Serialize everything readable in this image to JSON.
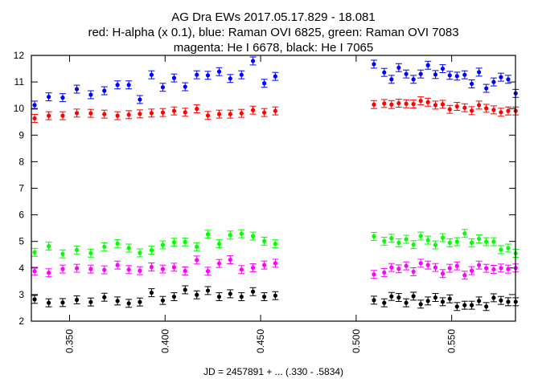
{
  "chart_data": {
    "type": "scatter",
    "title_lines": [
      "AG Dra EWs 2017.05.17.829 - 18.081",
      "red: H-alpha (x 0.1), blue: Raman OVI 6825, green: Raman OVI 7083",
      "magenta: He I 6678, black: He I 7065"
    ],
    "xlabel": "JD = 2457891 + ... (.330 - .5834)",
    "ylabel": "",
    "xlim": [
      0.33,
      0.5834
    ],
    "ylim": [
      2,
      12
    ],
    "xticks": [
      "0.350",
      "0.400",
      "0.450",
      "0.500",
      "0.550"
    ],
    "yticks": [
      "2",
      "3",
      "4",
      "5",
      "6",
      "7",
      "8",
      "9",
      "10",
      "11",
      "12"
    ],
    "grid": false,
    "error_bars": true,
    "yerr": 0.15,
    "x": [
      0.3317,
      0.3391,
      0.3464,
      0.3538,
      0.3611,
      0.3682,
      0.3751,
      0.381,
      0.3868,
      0.3929,
      0.3988,
      0.4047,
      0.4105,
      0.4166,
      0.4224,
      0.4283,
      0.4341,
      0.44,
      0.446,
      0.4519,
      0.4577,
      0.5093,
      0.5147,
      0.5185,
      0.5223,
      0.5262,
      0.53,
      0.5338,
      0.5376,
      0.5415,
      0.5453,
      0.549,
      0.5528,
      0.5568,
      0.5605,
      0.5643,
      0.5681,
      0.572,
      0.5758,
      0.5796,
      0.5835
    ],
    "series": [
      {
        "color": "#ff0000",
        "values": [
          9.63,
          9.73,
          9.73,
          9.83,
          9.82,
          9.79,
          9.73,
          9.77,
          9.8,
          9.83,
          9.85,
          9.91,
          9.86,
          9.99,
          9.74,
          9.79,
          9.79,
          9.82,
          9.94,
          9.85,
          9.91,
          10.15,
          10.19,
          10.15,
          10.2,
          10.18,
          10.17,
          10.29,
          10.24,
          10.13,
          10.16,
          9.97,
          10.08,
          10.03,
          9.92,
          10.13,
          10.01,
          9.95,
          9.86,
          9.91,
          9.91
        ]
      },
      {
        "color": "#0000ff",
        "values": [
          10.13,
          10.44,
          10.41,
          10.73,
          10.52,
          10.67,
          10.89,
          10.89,
          10.34,
          11.27,
          10.8,
          11.15,
          10.82,
          11.27,
          11.25,
          11.39,
          11.13,
          11.27,
          11.79,
          10.95,
          11.21,
          11.67,
          11.36,
          11.1,
          11.54,
          11.3,
          11.1,
          11.3,
          11.63,
          11.28,
          11.5,
          11.25,
          11.22,
          11.27,
          10.93,
          11.37,
          10.76,
          11.0,
          11.18,
          11.1,
          10.57
        ]
      },
      {
        "color": "#00ff00",
        "values": [
          4.59,
          4.82,
          4.53,
          4.68,
          4.56,
          4.8,
          4.92,
          4.75,
          4.57,
          4.67,
          4.87,
          4.97,
          4.98,
          4.8,
          5.27,
          4.91,
          5.24,
          5.29,
          5.2,
          5.01,
          4.91,
          5.19,
          5.01,
          5.12,
          4.95,
          5.08,
          4.88,
          5.2,
          5.05,
          4.87,
          5.14,
          4.95,
          4.99,
          5.3,
          4.95,
          5.1,
          4.99,
          4.99,
          4.69,
          4.75,
          4.55
        ]
      },
      {
        "color": "#ff00ff",
        "values": [
          3.88,
          3.82,
          3.96,
          3.99,
          3.96,
          3.93,
          4.11,
          3.94,
          3.9,
          4.04,
          3.96,
          4.03,
          3.89,
          4.3,
          3.88,
          4.17,
          4.31,
          3.94,
          4.01,
          4.11,
          4.18,
          3.76,
          3.83,
          4.02,
          3.97,
          4.08,
          3.86,
          4.18,
          4.11,
          4.02,
          3.79,
          3.99,
          4.08,
          3.73,
          3.9,
          4.11,
          3.99,
          3.95,
          4.0,
          3.96,
          4.0
        ]
      },
      {
        "color": "#000000",
        "values": [
          2.82,
          2.69,
          2.7,
          2.8,
          2.72,
          2.9,
          2.76,
          2.67,
          2.72,
          3.07,
          2.78,
          2.92,
          3.18,
          2.99,
          3.15,
          2.92,
          3.03,
          2.92,
          3.11,
          2.92,
          2.96,
          2.79,
          2.69,
          2.93,
          2.89,
          2.69,
          2.94,
          2.64,
          2.76,
          2.89,
          2.73,
          2.84,
          2.55,
          2.6,
          2.6,
          2.76,
          2.55,
          2.88,
          2.78,
          2.73,
          2.73
        ]
      }
    ]
  }
}
